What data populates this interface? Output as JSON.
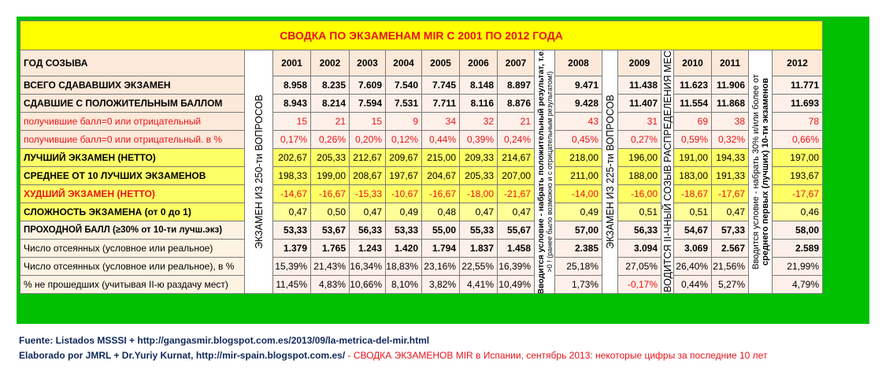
{
  "title": "СВОДКА ПО ЭКЗАМЕНАМ MIR С 2001 ПО 2012 ГОДА",
  "header_label": "ГОД СОЗЫВА",
  "years": [
    "2001",
    "2002",
    "2003",
    "2004",
    "2005",
    "2006",
    "2007",
    "2008",
    "2009",
    "2010",
    "2011",
    "2012"
  ],
  "rows": [
    {
      "label": "ВСЕГО СДАВАВШИХ ЭКЗАМЕН",
      "values": [
        "8.958",
        "8.235",
        "7.609",
        "7.540",
        "7.745",
        "8.148",
        "8.897",
        "9.471",
        "11.438",
        "11.623",
        "11.906",
        "11.771"
      ]
    },
    {
      "label": "СДАВШИЕ С ПОЛОЖИТЕЛЬНЫМ БАЛЛОМ",
      "values": [
        "8.943",
        "8.214",
        "7.594",
        "7.531",
        "7.711",
        "8.116",
        "8.876",
        "9.428",
        "11.407",
        "11.554",
        "11.868",
        "11.693"
      ]
    },
    {
      "label": "получившие балл=0 или отрицательный",
      "values": [
        "15",
        "21",
        "15",
        "9",
        "34",
        "32",
        "21",
        "43",
        "31",
        "69",
        "38",
        "78"
      ]
    },
    {
      "label": "получившие балл=0 или отрицательный. в %",
      "values": [
        "0,17%",
        "0,26%",
        "0,20%",
        "0,12%",
        "0,44%",
        "0,39%",
        "0,24%",
        "0,45%",
        "0,27%",
        "0,59%",
        "0,32%",
        "0,66%"
      ]
    },
    {
      "label": "ЛУЧШИЙ ЭКЗАМЕН (НЕТТО)",
      "values": [
        "202,67",
        "205,33",
        "212,67",
        "209,67",
        "215,00",
        "209,33",
        "214,67",
        "218,00",
        "196,00",
        "191,00",
        "194,33",
        "197,00"
      ]
    },
    {
      "label": "СРЕДНЕЕ ОТ 10 ЛУЧШИХ ЭКЗАМЕНОВ",
      "values": [
        "198,33",
        "199,00",
        "208,67",
        "197,67",
        "204,67",
        "205,33",
        "207,00",
        "211,00",
        "188,00",
        "183,00",
        "191,33",
        "193,67"
      ]
    },
    {
      "label": "ХУДШИЙ ЭКЗАМЕН (НЕТТО)",
      "values": [
        "-14,67",
        "-16,67",
        "-15,33",
        "-10,67",
        "-16,67",
        "-18,00",
        "-21,67",
        "-14,00",
        "-16,00",
        "-18,67",
        "-17,67",
        "-17,67"
      ]
    },
    {
      "label": "СЛОЖНОСТЬ ЭКЗАМЕНА (от 0 до 1)",
      "values": [
        "0,47",
        "0,50",
        "0,47",
        "0,49",
        "0,48",
        "0,47",
        "0,47",
        "0,49",
        "0,51",
        "0,51",
        "0,47",
        "0,46"
      ]
    },
    {
      "label": "ПРОХОДНОЙ БАЛЛ (≥30% от 10-ти лучш.экз)",
      "values": [
        "53,33",
        "53,67",
        "56,33",
        "53,33",
        "55,00",
        "55,33",
        "55,67",
        "57,00",
        "56,33",
        "54,67",
        "57,33",
        "58,00"
      ]
    },
    {
      "label": "Число отсеянных (условное или реальное)",
      "values": [
        "1.379",
        "1.765",
        "1.243",
        "1.420",
        "1.794",
        "1.837",
        "1.458",
        "2.385",
        "3.094",
        "3.069",
        "2.567",
        "2.589"
      ]
    },
    {
      "label": "Число отсеянных (условное или реальное), в %",
      "values": [
        "15,39%",
        "21,43%",
        "16,34%",
        "18,83%",
        "23,16%",
        "22,55%",
        "16,39%",
        "25,18%",
        "27,05%",
        "26,40%",
        "21,56%",
        "21,99%"
      ]
    },
    {
      "label": "% не прошедших (учитывая II-ю раздачу мест)",
      "values": [
        "11,45%",
        "4,83%",
        "10,66%",
        "8,10%",
        "3,82%",
        "4,41%",
        "10,49%",
        "1,73%",
        "-0,17%",
        "0,44%",
        "5,27%",
        "4,79%"
      ]
    }
  ],
  "vertical": {
    "v250": [
      "ЭКЗАМЕН ИЗ 250-ти ВОПРОСОВ"
    ],
    "vcond1": [
      "Вводится условие - набрать положительный результат, т.е.",
      ">0 ! (ранее было возможно и с отрицательным результатом!)"
    ],
    "v225": [
      "ЭКЗАМЕН ИЗ 225-ти ВОПРОСОВ"
    ],
    "vsecond": [
      "ВВОДИТСЯ II-ЧНЫЙ СОЗЫВ РАСПРЕДЕЛЕНИЯ МЕСТ"
    ],
    "vcond2": [
      "Вводится условие - набрать 30% и/или более от",
      "среднего первых (лучших) 10-ти экзаменов"
    ]
  },
  "footer": {
    "line1": "Fuente: Listados MSSSI + http://gangasmir.blogspot.com.es/2013/09/la-metrica-del-mir.html",
    "line2_black": "Elaborado por JMRL   + Dr.Yuriy Kurnat, http://mir-spain.blogspot.com.es/",
    "line2_red": " - СВОДКА ЭКЗАМЕНОВ MIR в Испании, сентябрь 2013: некоторые цифры за последние 10 лет"
  },
  "colors": {
    "border_green": "#00c000",
    "title_yellow": "#ffff00",
    "label_pink": "#fde9d9",
    "label_yellow": "#ffff66",
    "label_cream": "#fdf3e3",
    "red_text": "#e8141a"
  }
}
